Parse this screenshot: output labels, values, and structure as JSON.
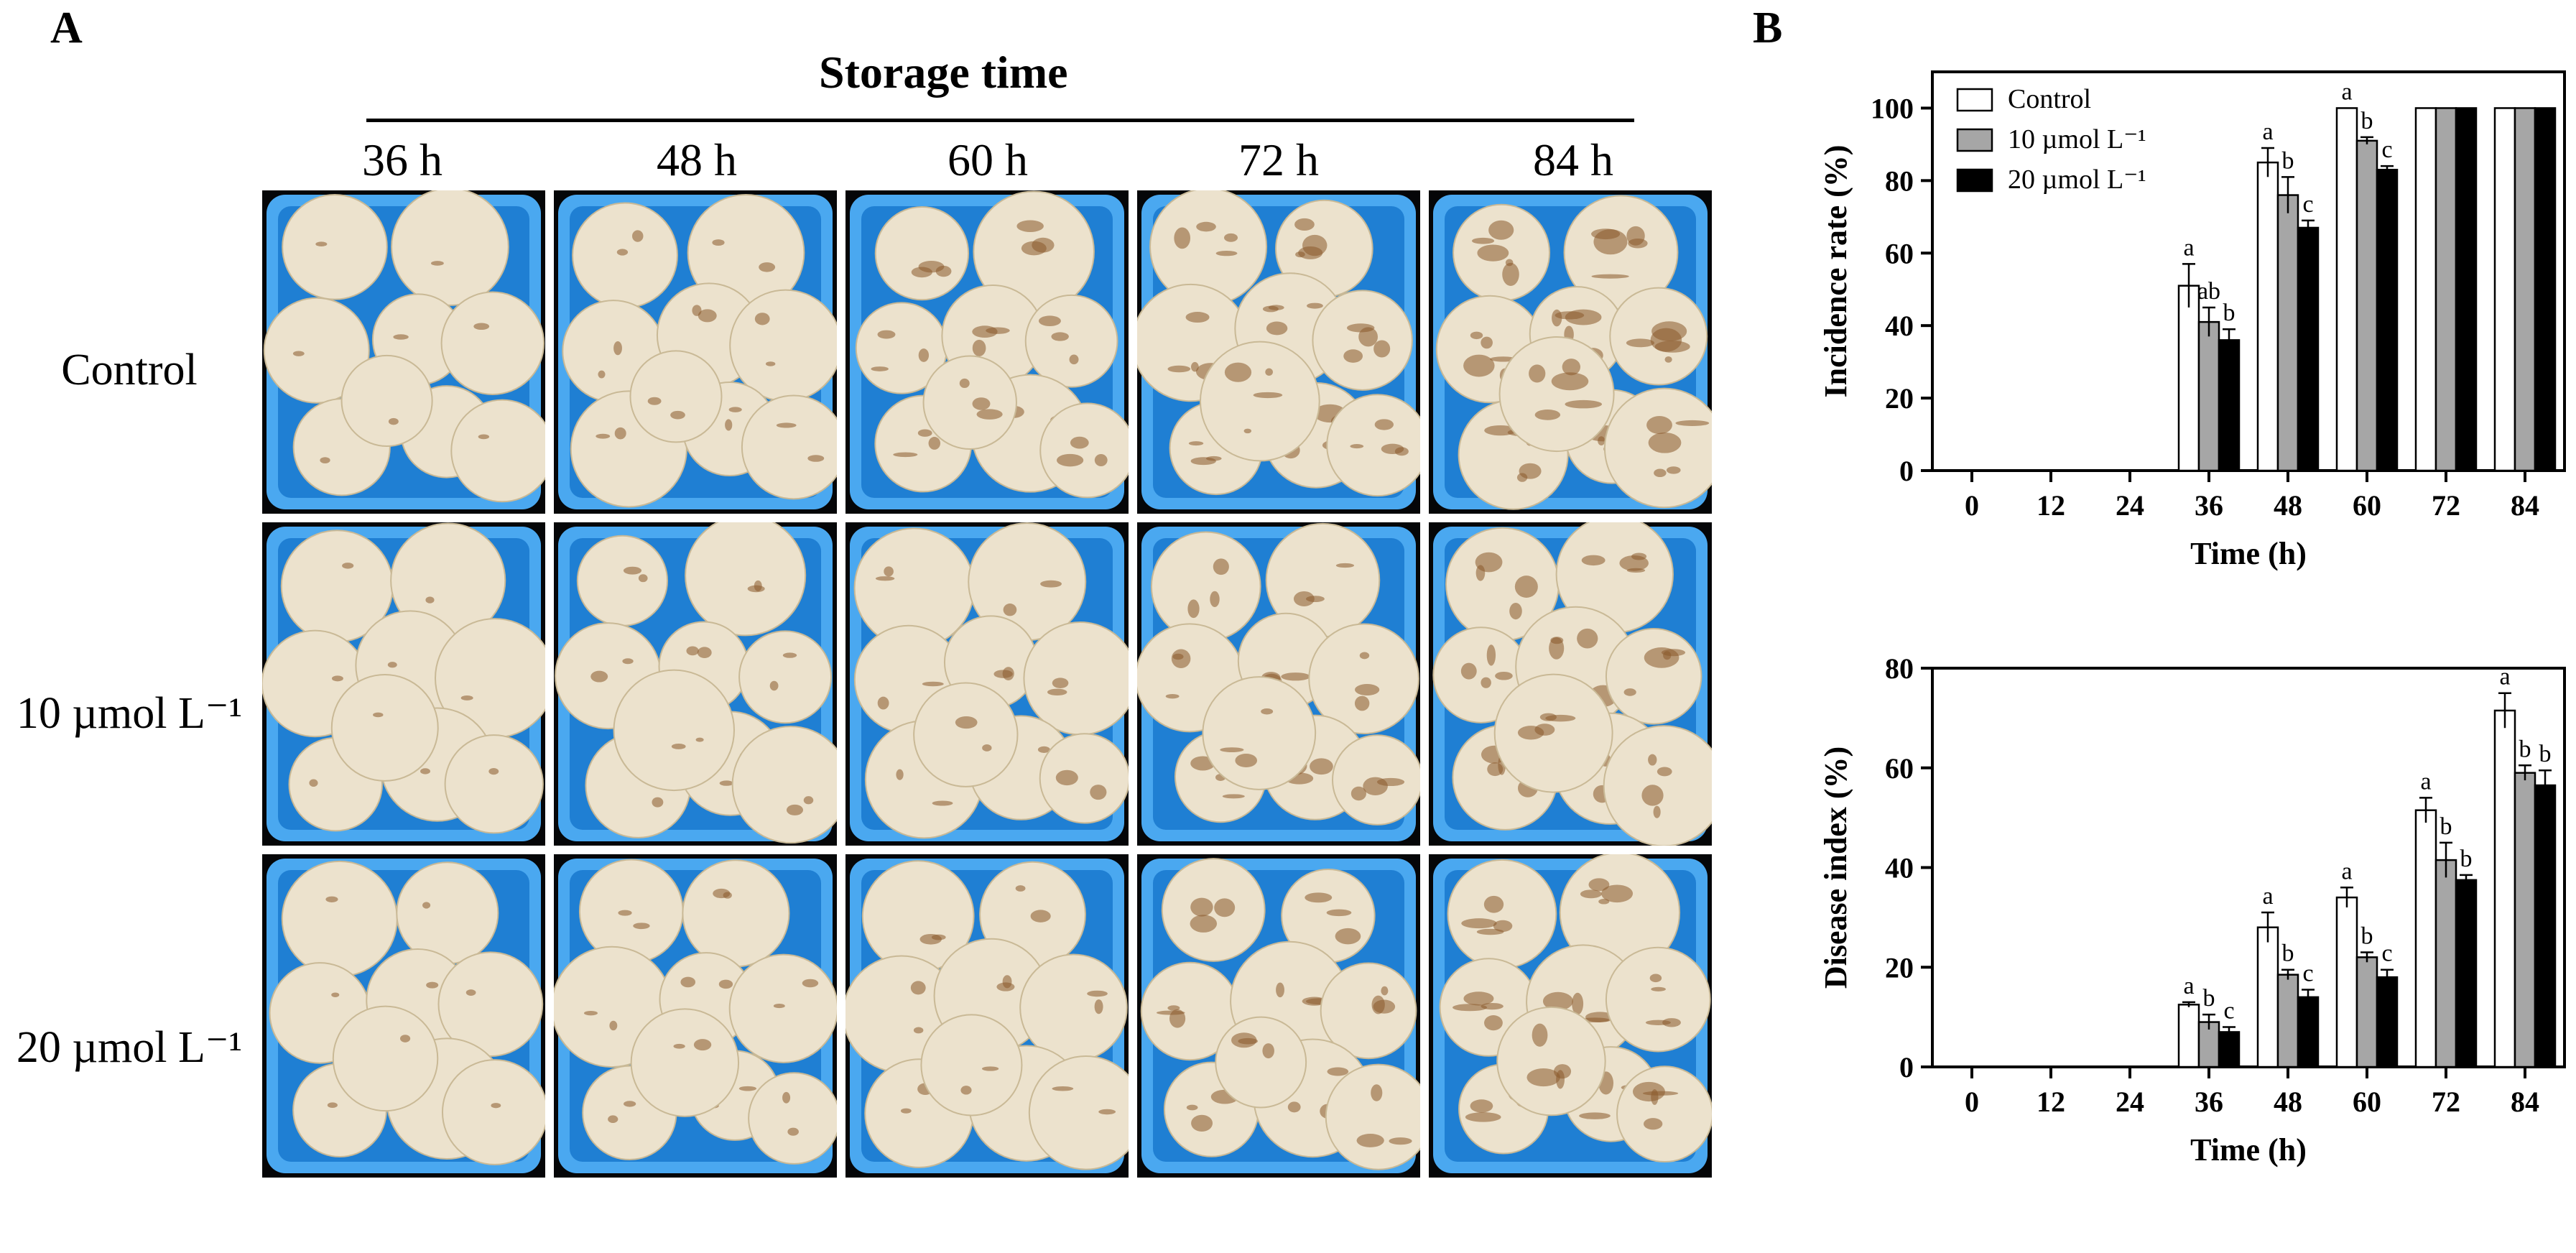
{
  "panel_a": {
    "letter": "A",
    "title": "Storage time",
    "times": [
      "36 h",
      "48 h",
      "60 h",
      "72 h",
      "84 h"
    ],
    "treatments": [
      "Control",
      "10 µmol L⁻¹",
      "20 µmol L⁻¹"
    ],
    "colors": {
      "tray": "#1f7fd3",
      "tray_rim": "#4aa8f0",
      "mushroom": "#ece2cd",
      "browning": "#8a5a2c"
    }
  },
  "panel_b": {
    "letter": "B"
  },
  "chart_data": [
    {
      "type": "bar",
      "categories": [
        "0",
        "12",
        "24",
        "36",
        "48",
        "60",
        "72",
        "84"
      ],
      "xlabel": "Time (h)",
      "ylabel": "Incidence rate (%)",
      "ylim": [
        0,
        110
      ],
      "yticks": [
        0,
        20,
        40,
        60,
        80,
        100
      ],
      "legend": {
        "placement": "top-left"
      },
      "series": [
        {
          "name": "Control",
          "color": "#ffffff",
          "values": [
            0,
            0,
            0,
            51,
            85,
            100,
            100,
            100
          ],
          "errors": [
            0,
            0,
            0,
            6,
            4,
            0,
            0,
            0
          ],
          "letters": [
            "",
            "",
            "",
            "a",
            "a",
            "a",
            "",
            ""
          ]
        },
        {
          "name": "10 µmol L⁻¹",
          "color": "#a6a6a6",
          "values": [
            0,
            0,
            0,
            41,
            76,
            91,
            100,
            100
          ],
          "errors": [
            0,
            0,
            0,
            4,
            5,
            1,
            0,
            0
          ],
          "letters": [
            "",
            "",
            "",
            "ab",
            "b",
            "b",
            "",
            ""
          ]
        },
        {
          "name": "20 µmol L⁻¹",
          "color": "#000000",
          "values": [
            0,
            0,
            0,
            36,
            67,
            83,
            100,
            100
          ],
          "errors": [
            0,
            0,
            0,
            3,
            2,
            1,
            0,
            0
          ],
          "letters": [
            "",
            "",
            "",
            "b",
            "c",
            "c",
            "",
            ""
          ]
        }
      ]
    },
    {
      "type": "bar",
      "categories": [
        "0",
        "12",
        "24",
        "36",
        "48",
        "60",
        "72",
        "84"
      ],
      "xlabel": "Time (h)",
      "ylabel": "Disease index (%)",
      "ylim": [
        0,
        80
      ],
      "yticks": [
        0,
        20,
        40,
        60,
        80
      ],
      "series": [
        {
          "name": "Control",
          "color": "#ffffff",
          "values": [
            0,
            0,
            0,
            12.5,
            28,
            34,
            51.5,
            71.5
          ],
          "errors": [
            0,
            0,
            0,
            0.5,
            3,
            2,
            2.5,
            3.5
          ],
          "letters": [
            "",
            "",
            "",
            "a",
            "a",
            "a",
            "a",
            "a"
          ]
        },
        {
          "name": "10 µmol L⁻¹",
          "color": "#a6a6a6",
          "values": [
            0,
            0,
            0,
            9,
            18.5,
            22,
            41.5,
            59
          ],
          "errors": [
            0,
            0,
            0,
            1.5,
            1,
            1,
            3.5,
            1.5
          ],
          "letters": [
            "",
            "",
            "",
            "b",
            "b",
            "b",
            "b",
            "b"
          ]
        },
        {
          "name": "20 µmol L⁻¹",
          "color": "#000000",
          "values": [
            0,
            0,
            0,
            7,
            14,
            18,
            37.5,
            56.5
          ],
          "errors": [
            0,
            0,
            0,
            1,
            1.5,
            1.5,
            1,
            3
          ],
          "letters": [
            "",
            "",
            "",
            "c",
            "c",
            "c",
            "b",
            "b"
          ]
        }
      ]
    }
  ]
}
